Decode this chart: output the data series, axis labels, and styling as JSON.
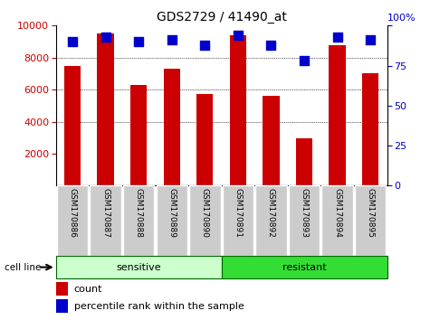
{
  "title": "GDS2729 / 41490_at",
  "samples": [
    "GSM170886",
    "GSM170887",
    "GSM170888",
    "GSM170889",
    "GSM170890",
    "GSM170891",
    "GSM170892",
    "GSM170893",
    "GSM170894",
    "GSM170895"
  ],
  "counts": [
    7500,
    9500,
    6300,
    7300,
    5750,
    9400,
    5600,
    2950,
    8800,
    7000
  ],
  "percentiles": [
    90,
    93,
    90,
    91,
    88,
    94,
    88,
    78,
    93,
    91
  ],
  "sensitive_count": 5,
  "resistant_count": 5,
  "sensitive_label": "sensitive",
  "resistant_label": "resistant",
  "cell_line_label": "cell line",
  "left_ylim": [
    0,
    10000
  ],
  "right_ylim": [
    0,
    100
  ],
  "left_yticks": [
    2000,
    4000,
    6000,
    8000,
    10000
  ],
  "right_yticks": [
    0,
    25,
    50,
    75,
    100
  ],
  "bar_color": "#cc0000",
  "dot_color": "#0000cc",
  "sensitive_bg": "#ccffcc",
  "resistant_bg": "#33dd33",
  "tick_bg": "#cccccc",
  "legend_count_label": "count",
  "legend_percentile_label": "percentile rank within the sample",
  "bar_width": 0.5,
  "dot_size": 50,
  "grid_color": "black",
  "grid_lw": 0.6,
  "grid_style": ":"
}
